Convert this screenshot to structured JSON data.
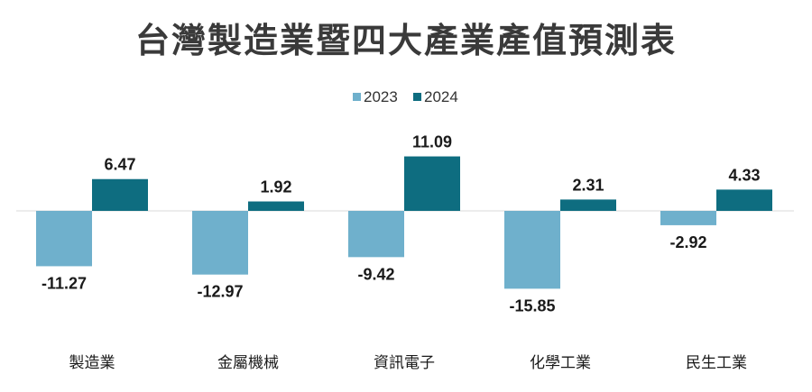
{
  "chart_data": {
    "type": "bar",
    "title": "台灣製造業暨四大產業產值預測表",
    "categories": [
      "製造業",
      "金屬機械",
      "資訊電子",
      "化學工業",
      "民生工業"
    ],
    "series": [
      {
        "name": "2023",
        "color": "#6fb0cc",
        "values": [
          -11.27,
          -12.97,
          -9.42,
          -15.85,
          -2.92
        ]
      },
      {
        "name": "2024",
        "color": "#0e6d80",
        "values": [
          6.47,
          1.92,
          11.09,
          2.31,
          4.33
        ]
      }
    ],
    "value_labels": [
      [
        "-11.27",
        "-12.97",
        "-9.42",
        "-15.85",
        "-2.92"
      ],
      [
        "6.47",
        "1.92",
        "11.09",
        "2.31",
        "4.33"
      ]
    ],
    "legend_position": "top-center",
    "grid": false,
    "ylim": [
      -16,
      12
    ]
  }
}
